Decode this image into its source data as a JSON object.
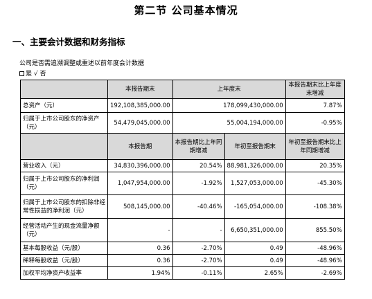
{
  "page_title": "第二节 公司基本情况",
  "section_title": "一、主要会计数据和财务指标",
  "adjust_question": "公司是否需追溯调整或重述以前年度会计数据",
  "adjust_options": {
    "box_label": "是",
    "check_mark": "√",
    "checked_label": "否"
  },
  "table1": {
    "headers": [
      "",
      "本报告期末",
      "上年度末",
      "本报告期末比上年度末增减"
    ],
    "rows": [
      {
        "label": "总资产（元）",
        "current": "192,108,385,000.00",
        "prior": "178,099,430,000.00",
        "change": "7.87%"
      },
      {
        "label": "归属于上市公司股东的净资产（元）",
        "current": "54,479,045,000.00",
        "prior": "55,004,194,000.00",
        "change": "-0.95%"
      }
    ]
  },
  "table2": {
    "headers": [
      "",
      "本报告期",
      "本报告期比上年同期增减",
      "年初至报告期末",
      "年初至报告期末比上年同期增减"
    ],
    "rows": [
      {
        "label": "营业收入（元）",
        "c1": "34,830,396,000.00",
        "c2": "20.54%",
        "c3": "88,981,326,000.00",
        "c4": "20.35%"
      },
      {
        "label": "归属于上市公司股东的净利润（元）",
        "c1": "1,047,954,000.00",
        "c2": "-1.92%",
        "c3": "1,527,053,000.00",
        "c4": "-45.30%"
      },
      {
        "label": "归属于上市公司股东的扣除非经常性损益的净利润（元）",
        "c1": "508,145,000.00",
        "c2": "-40.46%",
        "c3": "-165,054,000.00",
        "c4": "-108.38%"
      },
      {
        "label": "经营活动产生的现金流量净额（元）",
        "c1": "-",
        "c2": "-",
        "c3": "6,650,351,000.00",
        "c4": "855.50%"
      },
      {
        "label": "基本每股收益（元/股）",
        "c1": "0.36",
        "c2": "-2.70%",
        "c3": "0.49",
        "c4": "-48.96%"
      },
      {
        "label": "稀释每股收益（元/股）",
        "c1": "0.36",
        "c2": "-2.70%",
        "c3": "0.49",
        "c4": "-48.96%"
      },
      {
        "label": "加权平均净资产收益率",
        "c1": "1.94%",
        "c2": "-0.11%",
        "c3": "2.65%",
        "c4": "-2.69%"
      }
    ]
  }
}
